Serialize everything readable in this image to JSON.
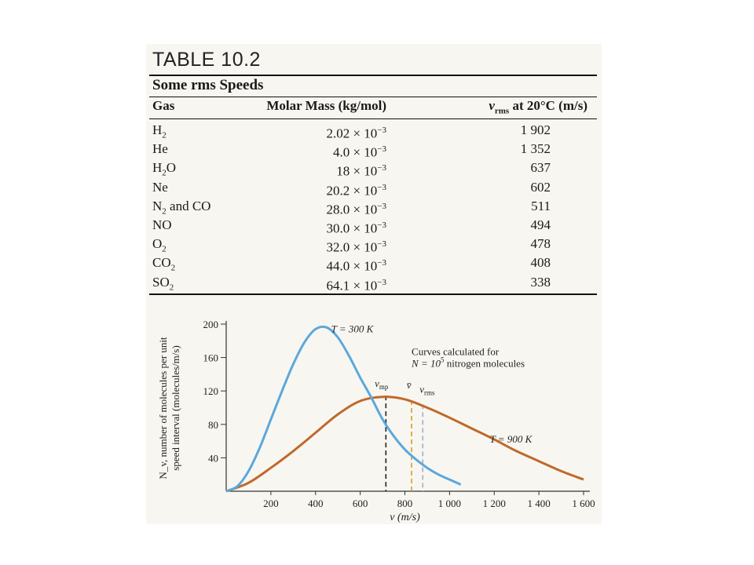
{
  "table": {
    "number": "TABLE 10.2",
    "caption": "Some rms Speeds",
    "headers": {
      "gas": "Gas",
      "molar_mass": "Molar Mass (kg/mol)",
      "vrms_v": "v",
      "vrms_sub": "rms",
      "vrms_rest": " at 20°C (m/s)"
    },
    "rows": [
      {
        "gas": "H",
        "gas_sub": "2",
        "gas_rest": "",
        "mass": "2.02 × 10",
        "exp": "−3",
        "vrms": "1 902"
      },
      {
        "gas": "He",
        "gas_sub": "",
        "gas_rest": "",
        "mass": "4.0 × 10",
        "exp": "−3",
        "vrms": "1 352"
      },
      {
        "gas": "H",
        "gas_sub": "2",
        "gas_rest": "O",
        "mass": "18 × 10",
        "exp": "−3",
        "vrms": "637"
      },
      {
        "gas": "Ne",
        "gas_sub": "",
        "gas_rest": "",
        "mass": "20.2 × 10",
        "exp": "−3",
        "vrms": "602"
      },
      {
        "gas": "N",
        "gas_sub": "2",
        "gas_rest": " and CO",
        "mass": "28.0 × 10",
        "exp": "−3",
        "vrms": "511"
      },
      {
        "gas": "NO",
        "gas_sub": "",
        "gas_rest": "",
        "mass": "30.0 × 10",
        "exp": "−3",
        "vrms": "494"
      },
      {
        "gas": "O",
        "gas_sub": "2",
        "gas_rest": "",
        "mass": "32.0 × 10",
        "exp": "−3",
        "vrms": "478"
      },
      {
        "gas": "CO",
        "gas_sub": "2",
        "gas_rest": "",
        "mass": "44.0 × 10",
        "exp": "−3",
        "vrms": "408"
      },
      {
        "gas": "SO",
        "gas_sub": "2",
        "gas_rest": "",
        "mass": "64.1 × 10",
        "exp": "−3",
        "vrms": "338"
      }
    ]
  },
  "chart_data": {
    "type": "line",
    "xlabel": "v (m/s)",
    "ylabel_line1": "N_v, number of molecules per unit",
    "ylabel_line2": "speed interval (molecules/m/s)",
    "xlim": [
      0,
      1600
    ],
    "ylim": [
      0,
      200
    ],
    "x_ticks": [
      "200",
      "400",
      "600",
      "800",
      "1 000",
      "1 200",
      "1 400",
      "1 600"
    ],
    "x_tick_values": [
      200,
      400,
      600,
      800,
      1000,
      1200,
      1400,
      1600
    ],
    "y_ticks": [
      "40",
      "80",
      "120",
      "160",
      "200"
    ],
    "y_tick_values": [
      40,
      80,
      120,
      160,
      200
    ],
    "annotation_line1": "Curves calculated for",
    "annotation_line2_pre": "N = 10",
    "annotation_line2_sup": "5",
    "annotation_line2_post": " nitrogen molecules",
    "series": [
      {
        "name": "T = 300 K",
        "color": "#5ba8dc",
        "x": [
          0,
          50,
          100,
          150,
          200,
          250,
          300,
          350,
          400,
          450,
          500,
          550,
          600,
          650,
          700,
          750,
          800,
          850,
          900,
          950,
          1000,
          1050
        ],
        "y": [
          0,
          6,
          24,
          52,
          86,
          120,
          152,
          178,
          194,
          196,
          184,
          162,
          136,
          112,
          86,
          66,
          50,
          38,
          28,
          20,
          14,
          8
        ]
      },
      {
        "name": "T = 900 K",
        "color": "#c0692a",
        "x": [
          0,
          100,
          200,
          300,
          400,
          500,
          600,
          700,
          800,
          900,
          1000,
          1100,
          1200,
          1300,
          1400,
          1500,
          1600
        ],
        "y": [
          0,
          10,
          28,
          48,
          70,
          92,
          108,
          113,
          110,
          100,
          88,
          75,
          62,
          48,
          36,
          24,
          14
        ]
      }
    ],
    "markers": [
      {
        "label": "v",
        "label_sub": "mp",
        "x": 715,
        "color": "#222222"
      },
      {
        "label": "v̄",
        "label_sub": "",
        "x": 830,
        "color": "#d4a020"
      },
      {
        "label": "v",
        "label_sub": "rms",
        "x": 880,
        "color": "#9fb0c8"
      }
    ]
  }
}
